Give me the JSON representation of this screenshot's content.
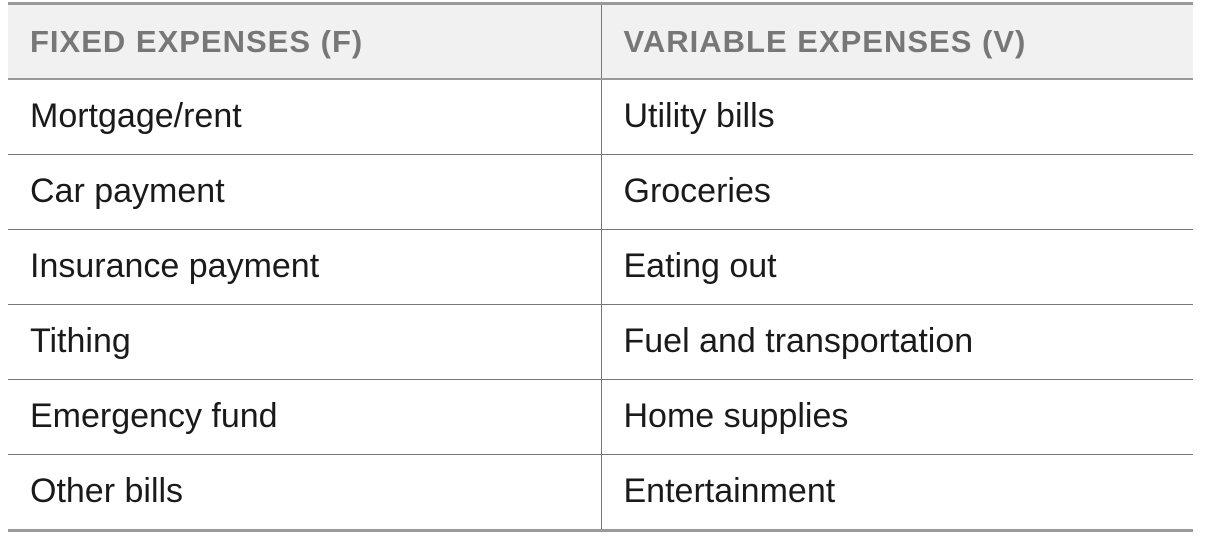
{
  "table": {
    "headers": [
      "FIXED EXPENSES (F)",
      "VARIABLE EXPENSES (V)"
    ],
    "rows": [
      [
        "Mortgage/rent",
        "Utility bills"
      ],
      [
        "Car payment",
        "Groceries"
      ],
      [
        "Insurance payment",
        "Eating out"
      ],
      [
        "Tithing",
        "Fuel and transportation"
      ],
      [
        "Emergency fund",
        "Home supplies"
      ],
      [
        "Other bills",
        "Entertainment"
      ]
    ]
  },
  "colors": {
    "header_background": "#f1f1f1",
    "header_text": "#777777",
    "body_text": "#1a1a1a",
    "rule": "#9a9a9a"
  }
}
